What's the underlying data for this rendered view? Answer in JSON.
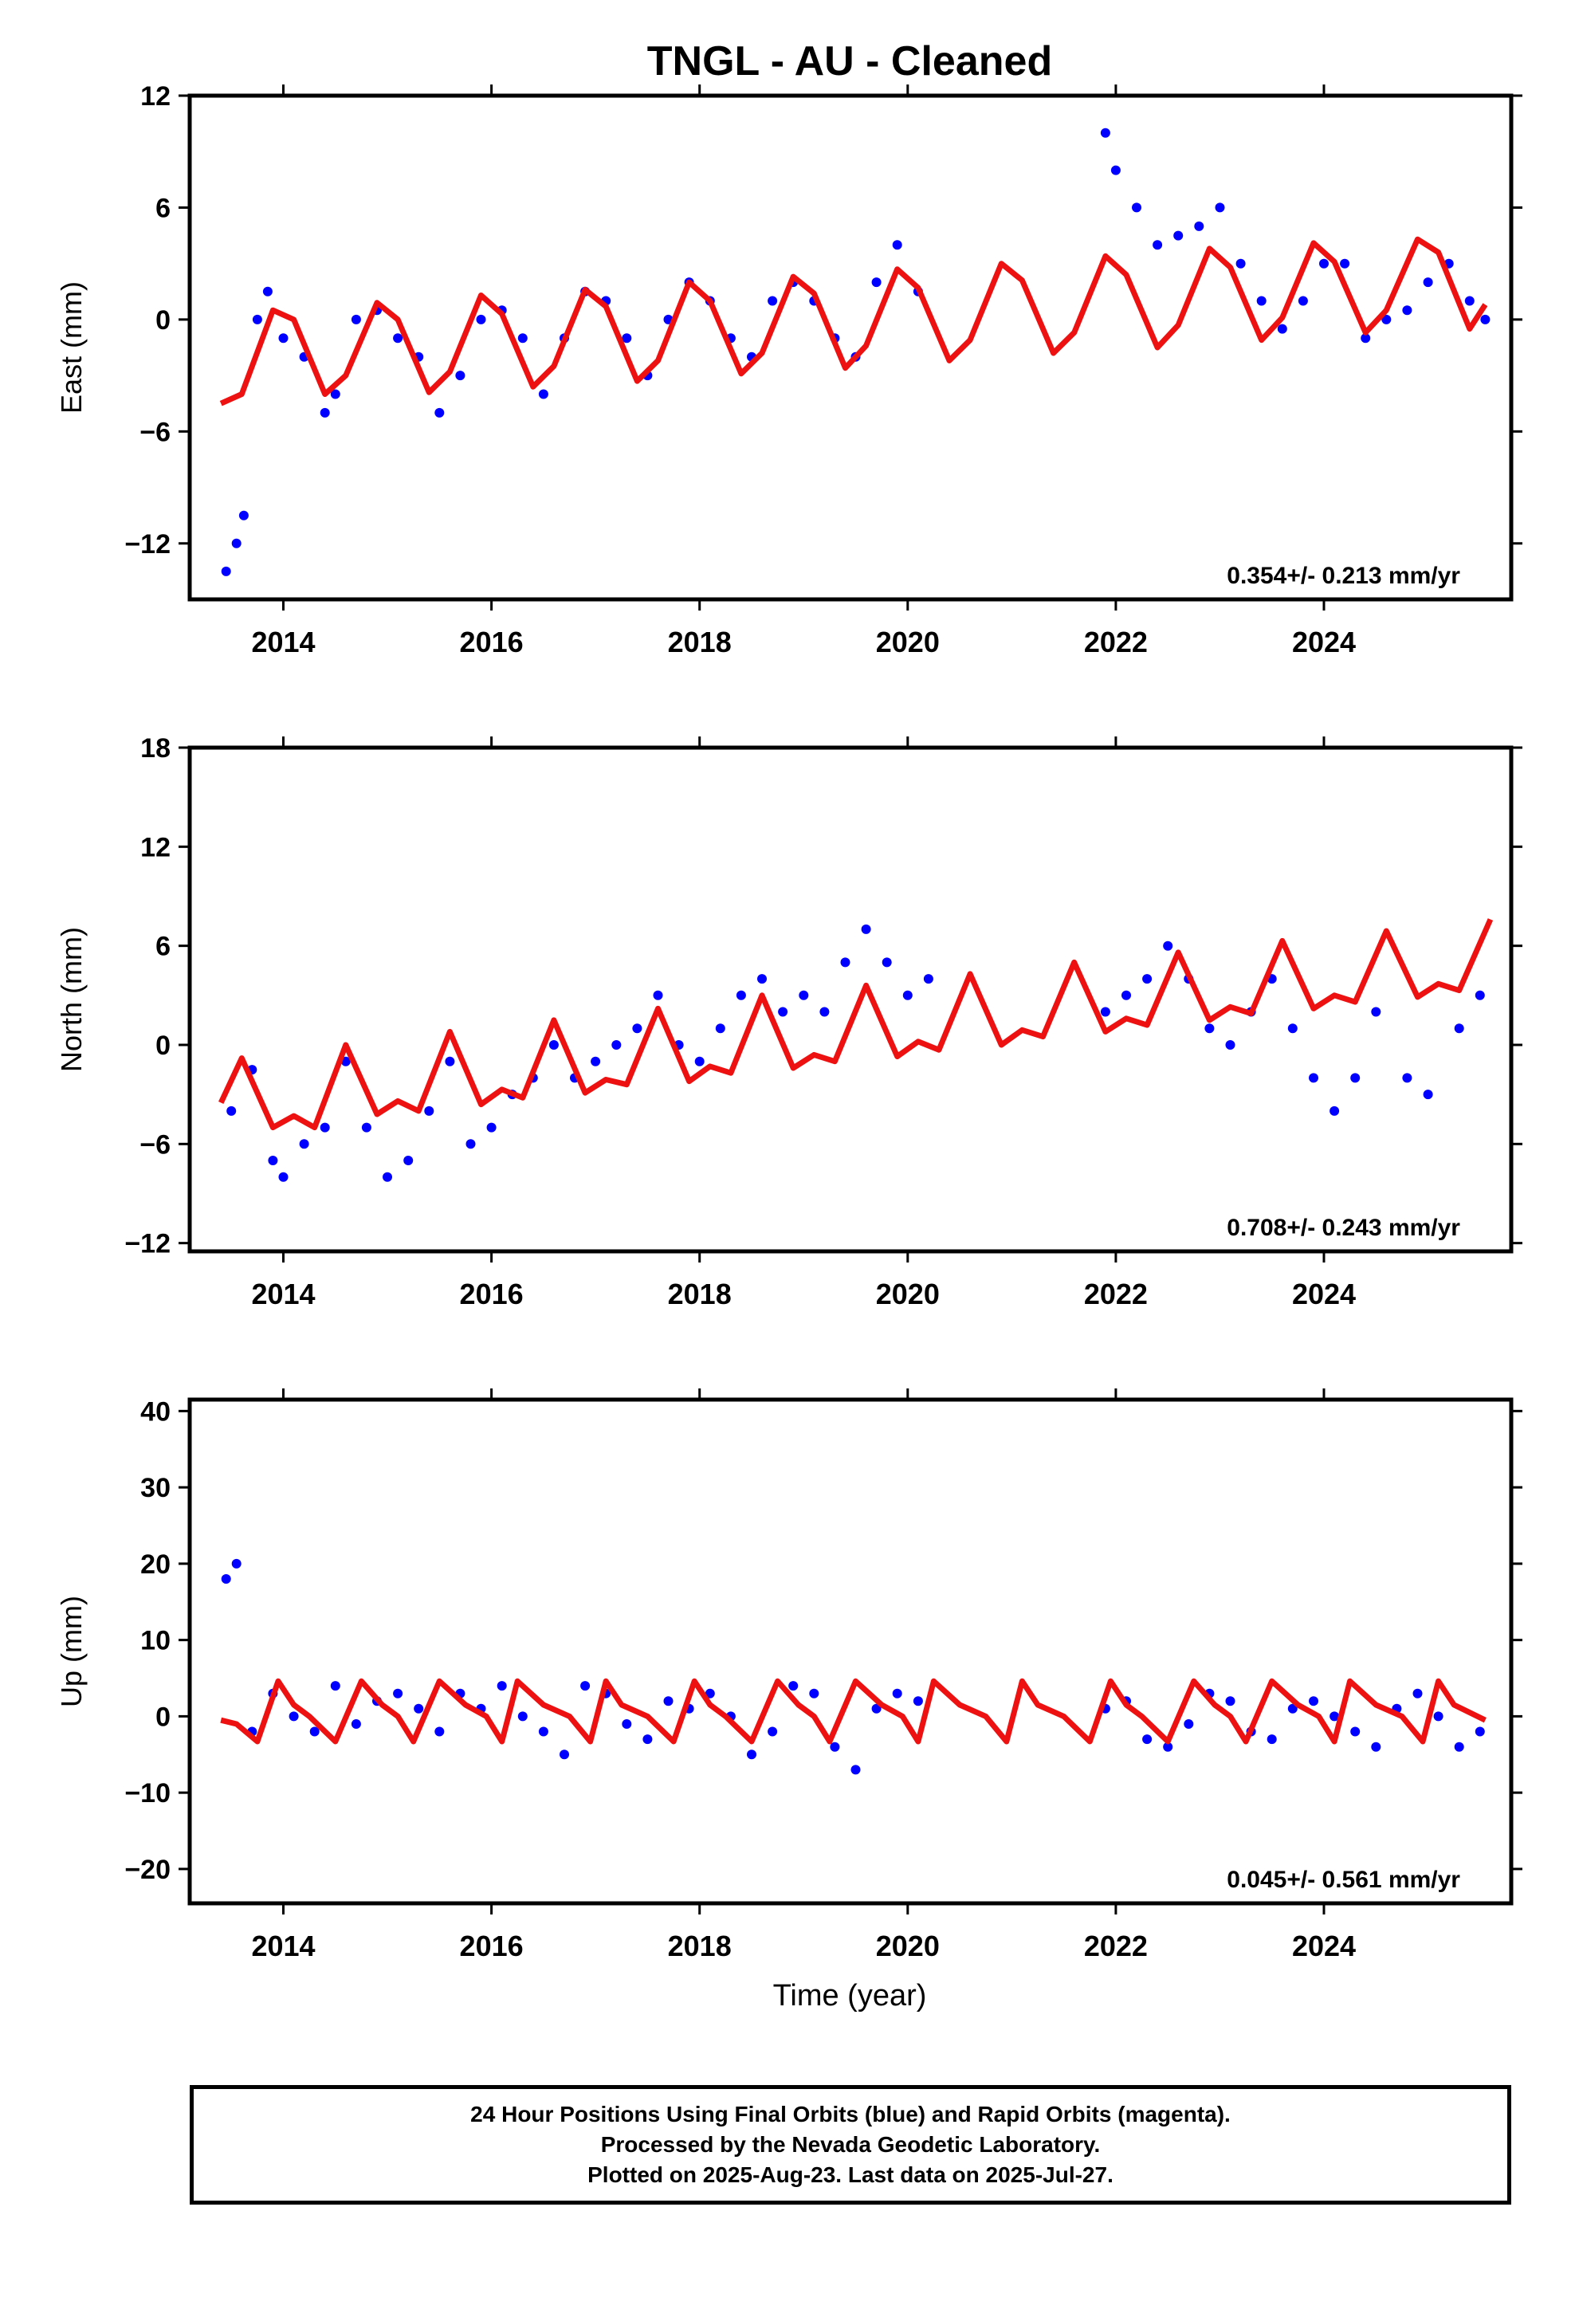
{
  "title": "TNGL  - AU - Cleaned",
  "xlabel": "Time (year)",
  "colors": {
    "data": "#0000ff",
    "fit": "#ee1111",
    "frame": "#000000"
  },
  "footnote": {
    "line1": "24 Hour Positions Using Final Orbits (blue) and Rapid Orbits (magenta).",
    "line2": "Processed by the Nevada Geodetic Laboratory.",
    "line3": "Plotted on 2025-Aug-23. Last data on 2025-Jul-27."
  },
  "chart_data": [
    {
      "type": "scatter",
      "ylabel": "East (mm)",
      "rate": "0.354+/- 0.213 mm/yr",
      "xlim": [
        2013.1,
        2025.8
      ],
      "ylim": [
        -15,
        12
      ],
      "xticks": [
        "2014",
        "2016",
        "2018",
        "2020",
        "2022",
        "2024"
      ],
      "yticks": [
        "12",
        "6",
        "0",
        "−6",
        "−12"
      ],
      "ytick_values": [
        12,
        6,
        0,
        -6,
        -12
      ],
      "series": [
        {
          "kind": "points",
          "x": [
            2013.45,
            2013.55,
            2013.62,
            2013.75,
            2013.85,
            2014.0,
            2014.2,
            2014.4,
            2014.5,
            2014.7,
            2014.9,
            2015.1,
            2015.3,
            2015.5,
            2015.7,
            2015.9,
            2016.1,
            2016.3,
            2016.5,
            2016.7,
            2016.9,
            2017.1,
            2017.3,
            2017.5,
            2017.7,
            2017.9,
            2018.1,
            2018.3,
            2018.5,
            2018.7,
            2018.9,
            2019.1,
            2019.3,
            2019.5,
            2019.7,
            2019.9,
            2020.1,
            2021.9,
            2022.0,
            2022.2,
            2022.4,
            2022.6,
            2022.8,
            2023.0,
            2023.2,
            2023.4,
            2023.6,
            2023.8,
            2024.0,
            2024.2,
            2024.4,
            2024.6,
            2024.8,
            2025.0,
            2025.2,
            2025.4,
            2025.55
          ],
          "y": [
            -13.5,
            -12,
            -10.5,
            0,
            1.5,
            -1,
            -2,
            -5,
            -4,
            0,
            0.5,
            -1,
            -2,
            -5,
            -3,
            0,
            0.5,
            -1,
            -4,
            -1,
            1.5,
            1,
            -1,
            -3,
            0,
            2,
            1,
            -1,
            -2,
            1,
            2,
            1,
            -1,
            -2,
            2,
            4,
            1.5,
            10,
            8,
            6,
            4,
            4.5,
            5,
            6,
            3,
            1,
            -0.5,
            1,
            3,
            3,
            -1,
            0,
            0.5,
            2,
            3,
            1,
            0
          ]
        },
        {
          "kind": "fit",
          "x": [
            2013.4,
            2013.6,
            2013.9,
            2014.1,
            2014.4,
            2014.6,
            2014.9,
            2015.1,
            2015.4,
            2015.6,
            2015.9,
            2016.1,
            2016.4,
            2016.6,
            2016.9,
            2017.1,
            2017.4,
            2017.6,
            2017.9,
            2018.1,
            2018.4,
            2018.6,
            2018.9,
            2019.1,
            2019.4,
            2019.6,
            2019.9,
            2020.1,
            2020.4,
            2020.6,
            2020.9,
            2021.1,
            2021.4,
            2021.6,
            2021.9,
            2022.1,
            2022.4,
            2022.6,
            2022.9,
            2023.1,
            2023.4,
            2023.6,
            2023.9,
            2024.1,
            2024.4,
            2024.6,
            2024.9,
            2025.1,
            2025.4,
            2025.55
          ],
          "y": [
            -4.5,
            -4,
            0.5,
            0,
            -4,
            -3,
            0.9,
            0,
            -3.9,
            -2.8,
            1.3,
            0.3,
            -3.6,
            -2.5,
            1.6,
            0.7,
            -3.3,
            -2.2,
            2.0,
            1.0,
            -2.9,
            -1.8,
            2.3,
            1.4,
            -2.6,
            -1.4,
            2.7,
            1.7,
            -2.2,
            -1.1,
            3.0,
            2.1,
            -1.8,
            -0.7,
            3.4,
            2.4,
            -1.5,
            -0.3,
            3.8,
            2.8,
            -1.1,
            0.1,
            4.1,
            3.1,
            -0.7,
            0.5,
            4.3,
            3.6,
            -0.5,
            0.8
          ]
        }
      ]
    },
    {
      "type": "scatter",
      "ylabel": "North (mm)",
      "rate": "0.708+/- 0.243 mm/yr",
      "xlim": [
        2013.1,
        2025.8
      ],
      "ylim": [
        -12.5,
        18
      ],
      "xticks": [
        "2014",
        "2016",
        "2018",
        "2020",
        "2022",
        "2024"
      ],
      "yticks": [
        "18",
        "12",
        "6",
        "0",
        "−6",
        "−12"
      ],
      "ytick_values": [
        18,
        12,
        6,
        0,
        -6,
        -12
      ],
      "series": [
        {
          "kind": "points",
          "x": [
            2013.5,
            2013.7,
            2013.9,
            2014.0,
            2014.2,
            2014.4,
            2014.6,
            2014.8,
            2015.0,
            2015.2,
            2015.4,
            2015.6,
            2015.8,
            2016.0,
            2016.2,
            2016.4,
            2016.6,
            2016.8,
            2017.0,
            2017.2,
            2017.4,
            2017.6,
            2017.8,
            2018.0,
            2018.2,
            2018.4,
            2018.6,
            2018.8,
            2019.0,
            2019.2,
            2019.4,
            2019.6,
            2019.8,
            2020.0,
            2020.2,
            2021.9,
            2022.1,
            2022.3,
            2022.5,
            2022.7,
            2022.9,
            2023.1,
            2023.3,
            2023.5,
            2023.7,
            2023.9,
            2024.1,
            2024.3,
            2024.5,
            2024.8,
            2025.0,
            2025.3,
            2025.5
          ],
          "y": [
            -4,
            -1.5,
            -7,
            -8,
            -6,
            -5,
            -1,
            -5,
            -8,
            -7,
            -4,
            -1,
            -6,
            -5,
            -3,
            -2,
            0,
            -2,
            -1,
            0,
            1,
            3,
            0,
            -1,
            1,
            3,
            4,
            2,
            3,
            2,
            5,
            7,
            5,
            3,
            4,
            2,
            3,
            4,
            6,
            4,
            1,
            0,
            2,
            4,
            1,
            -2,
            -4,
            -2,
            2,
            -2,
            -3,
            1,
            3
          ]
        },
        {
          "kind": "fit",
          "x": [
            2013.4,
            2013.6,
            2013.9,
            2014.1,
            2014.3,
            2014.6,
            2014.9,
            2015.1,
            2015.3,
            2015.6,
            2015.9,
            2016.1,
            2016.3,
            2016.6,
            2016.9,
            2017.1,
            2017.3,
            2017.6,
            2017.9,
            2018.1,
            2018.3,
            2018.6,
            2018.9,
            2019.1,
            2019.3,
            2019.6,
            2019.9,
            2020.1,
            2020.3,
            2020.6,
            2020.9,
            2021.1,
            2021.3,
            2021.6,
            2021.9,
            2022.1,
            2022.3,
            2022.6,
            2022.9,
            2023.1,
            2023.3,
            2023.6,
            2023.9,
            2024.1,
            2024.3,
            2024.6,
            2024.9,
            2025.1,
            2025.3,
            2025.6
          ],
          "y": [
            -3.5,
            -0.8,
            -5,
            -4.3,
            -5,
            0,
            -4.2,
            -3.4,
            -4,
            0.8,
            -3.6,
            -2.7,
            -3.2,
            1.5,
            -2.9,
            -2.1,
            -2.4,
            2.2,
            -2.2,
            -1.3,
            -1.7,
            3.0,
            -1.4,
            -0.6,
            -1,
            3.6,
            -0.7,
            0.2,
            -0.3,
            4.3,
            0,
            0.9,
            0.5,
            5.0,
            0.8,
            1.6,
            1.2,
            5.6,
            1.5,
            2.3,
            1.9,
            6.3,
            2.2,
            3.0,
            2.6,
            6.9,
            2.9,
            3.7,
            3.3,
            7.6
          ]
        }
      ]
    },
    {
      "type": "scatter",
      "ylabel": "Up (mm)",
      "rate": "0.045+/- 0.561 mm/yr",
      "xlim": [
        2013.1,
        2025.8
      ],
      "ylim": [
        -24.5,
        41.5
      ],
      "xticks": [
        "2014",
        "2016",
        "2018",
        "2020",
        "2022",
        "2024"
      ],
      "yticks": [
        "40",
        "30",
        "20",
        "10",
        "0",
        "−10",
        "−20"
      ],
      "ytick_values": [
        40,
        30,
        20,
        10,
        0,
        -10,
        -20
      ],
      "series": [
        {
          "kind": "points",
          "x": [
            2013.45,
            2013.55,
            2013.7,
            2013.9,
            2014.1,
            2014.3,
            2014.5,
            2014.7,
            2014.9,
            2015.1,
            2015.3,
            2015.5,
            2015.7,
            2015.9,
            2016.1,
            2016.3,
            2016.5,
            2016.7,
            2016.9,
            2017.1,
            2017.3,
            2017.5,
            2017.7,
            2017.9,
            2018.1,
            2018.3,
            2018.5,
            2018.7,
            2018.9,
            2019.1,
            2019.3,
            2019.5,
            2019.7,
            2019.9,
            2020.1,
            2021.9,
            2022.1,
            2022.3,
            2022.5,
            2022.7,
            2022.9,
            2023.1,
            2023.3,
            2023.5,
            2023.7,
            2023.9,
            2024.1,
            2024.3,
            2024.5,
            2024.7,
            2024.9,
            2025.1,
            2025.3,
            2025.5
          ],
          "y": [
            18,
            20,
            -2,
            3,
            0,
            -2,
            4,
            -1,
            2,
            3,
            1,
            -2,
            3,
            1,
            4,
            0,
            -2,
            -5,
            4,
            3,
            -1,
            -3,
            2,
            1,
            3,
            0,
            -5,
            -2,
            4,
            3,
            -4,
            -7,
            1,
            3,
            2,
            1,
            2,
            -3,
            -4,
            -1,
            3,
            2,
            -2,
            -3,
            1,
            2,
            0,
            -2,
            -4,
            1,
            3,
            0,
            -4,
            -2
          ]
        },
        {
          "kind": "fit",
          "x": [
            2013.4,
            2013.55,
            2013.75,
            2013.95,
            2014.1,
            2014.25,
            2014.5,
            2014.75,
            2014.95,
            2015.1,
            2015.25,
            2015.5,
            2015.75,
            2015.95,
            2016.1,
            2016.25,
            2016.5,
            2016.75,
            2016.95,
            2017.1,
            2017.25,
            2017.5,
            2017.75,
            2017.95,
            2018.1,
            2018.25,
            2018.5,
            2018.75,
            2018.95,
            2019.1,
            2019.25,
            2019.5,
            2019.75,
            2019.95,
            2020.1,
            2020.25,
            2020.5,
            2020.75,
            2020.95,
            2021.1,
            2021.25,
            2021.5,
            2021.75,
            2021.95,
            2022.1,
            2022.25,
            2022.5,
            2022.75,
            2022.95,
            2023.1,
            2023.25,
            2023.5,
            2023.75,
            2023.95,
            2024.1,
            2024.25,
            2024.5,
            2024.75,
            2024.95,
            2025.1,
            2025.25,
            2025.55
          ],
          "y": [
            -0.5,
            -1,
            -3.3,
            4.6,
            1.5,
            0,
            -3.3,
            4.6,
            1.5,
            0,
            -3.3,
            4.6,
            1.5,
            0,
            -3.3,
            4.6,
            1.5,
            0,
            -3.3,
            4.6,
            1.5,
            0,
            -3.3,
            4.6,
            1.5,
            0,
            -3.3,
            4.6,
            1.5,
            0,
            -3.3,
            4.6,
            1.5,
            0,
            -3.3,
            4.6,
            1.5,
            0,
            -3.3,
            4.6,
            1.5,
            0,
            -3.3,
            4.6,
            1.5,
            0,
            -3.3,
            4.6,
            1.5,
            0,
            -3.3,
            4.6,
            1.5,
            0,
            -3.3,
            4.6,
            1.5,
            0,
            -3.3,
            4.6,
            1.5,
            -0.5
          ]
        }
      ]
    }
  ]
}
